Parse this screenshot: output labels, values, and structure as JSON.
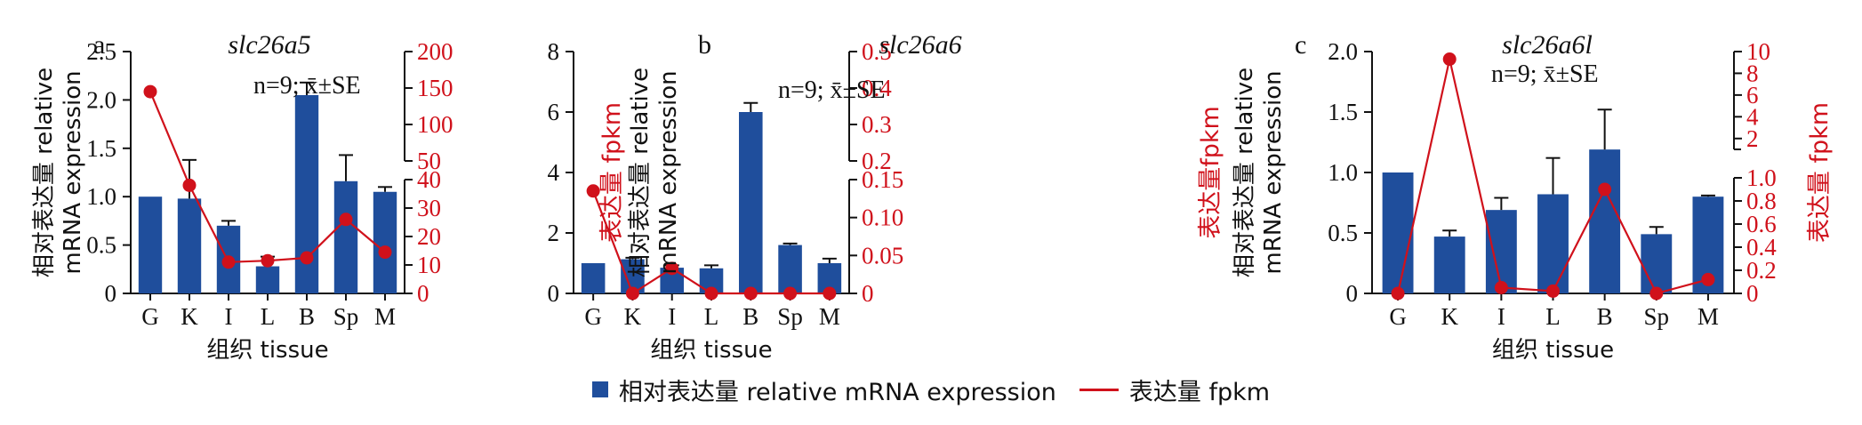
{
  "chart_data": [
    {
      "type": "bar",
      "panel_label": "a",
      "title": "slc26a5",
      "note": "n=9; x̄±SE",
      "categories": [
        "G",
        "K",
        "I",
        "L",
        "B",
        "Sp",
        "M"
      ],
      "xlabel": "组织 tissue",
      "ylabel": "相对表达量 relative mRNA expression",
      "ylim": [
        0,
        2.5
      ],
      "yticks": [
        "0",
        "0.5",
        "1.0",
        "1.5",
        "2.0",
        "2.5"
      ],
      "series": [
        {
          "name": "相对表达量 relative mRNA expression",
          "values": [
            1.0,
            0.98,
            0.7,
            0.28,
            2.05,
            1.16,
            1.05
          ],
          "errors": [
            0,
            0.4,
            0.05,
            0.1,
            0.13,
            0.27,
            0.05
          ]
        },
        {
          "name": "表达量 fpkm",
          "axis": "right",
          "values": [
            145,
            38,
            11,
            11.5,
            12.5,
            26,
            14.5
          ]
        }
      ],
      "y2label": "表达量 fpkm",
      "y2_broken": true,
      "y2_lower": {
        "range": [
          0,
          40
        ],
        "ticks": [
          "0",
          "10",
          "20",
          "30",
          "40"
        ]
      },
      "y2_upper": {
        "range": [
          50,
          200
        ],
        "ticks": [
          "50",
          "100",
          "150",
          "200"
        ]
      }
    },
    {
      "type": "bar",
      "panel_label": "b",
      "title": "slc26a6",
      "note": "n=9; x̄±SE",
      "categories": [
        "G",
        "K",
        "I",
        "L",
        "B",
        "Sp",
        "M"
      ],
      "xlabel": "组织 tissue",
      "ylabel": "相对表达量 relative mRNA expression",
      "ylim": [
        0,
        8
      ],
      "yticks": [
        "0",
        "2",
        "4",
        "6",
        "8"
      ],
      "series": [
        {
          "name": "相对表达量 relative mRNA expression",
          "values": [
            1.0,
            1.13,
            0.85,
            0.83,
            6.0,
            1.6,
            1.0
          ],
          "errors": [
            0,
            0.05,
            0.08,
            0.1,
            0.3,
            0.05,
            0.15
          ]
        },
        {
          "name": "表达量 fpkm",
          "axis": "right",
          "values": [
            0.135,
            0.0,
            0.033,
            0.0,
            0.0,
            0.0,
            0.0
          ]
        }
      ],
      "y2label": "表达量fpkm",
      "y2_broken": true,
      "y2_lower": {
        "range": [
          0,
          0.15
        ],
        "ticks": [
          "0",
          "0.05",
          "0.10",
          "0.15"
        ]
      },
      "y2_upper": {
        "range": [
          0.2,
          0.5
        ],
        "ticks": [
          "0.2",
          "0.3",
          "0.4",
          "0.5"
        ]
      }
    },
    {
      "type": "bar",
      "panel_label": "c",
      "title": "slc26a6l",
      "note": "n=9; x̄±SE",
      "categories": [
        "G",
        "K",
        "I",
        "L",
        "B",
        "Sp",
        "M"
      ],
      "xlabel": "组织 tissue",
      "ylabel": "相对表达量 relative mRNA expression",
      "ylim": [
        0,
        2.0
      ],
      "yticks": [
        "0",
        "0.5",
        "1.0",
        "1.5",
        "2.0"
      ],
      "series": [
        {
          "name": "相对表达量 relative mRNA expression",
          "values": [
            1.0,
            0.47,
            0.69,
            0.82,
            1.19,
            0.49,
            0.8
          ],
          "errors": [
            0,
            0.05,
            0.1,
            0.3,
            0.33,
            0.06,
            0.01
          ]
        },
        {
          "name": "表达量 fpkm",
          "axis": "right",
          "values": [
            0.0,
            9.3,
            0.05,
            0.02,
            0.9,
            0.0,
            0.12
          ]
        }
      ],
      "y2label": "表达量 fpkm",
      "y2_broken": true,
      "y2_lower": {
        "range": [
          0,
          1.0
        ],
        "ticks": [
          "0",
          "0.2",
          "0.4",
          "0.6",
          "0.8",
          "1.0"
        ]
      },
      "y2_upper": {
        "range": [
          1,
          10
        ],
        "ticks": [
          "2",
          "4",
          "6",
          "8",
          "10"
        ]
      }
    }
  ],
  "legend": {
    "position": "bottom-center",
    "bar_label": "相对表达量 relative mRNA expression",
    "line_label": "表达量 fpkm"
  },
  "colors": {
    "bar": "#1f4e9c",
    "line": "#d0111b",
    "axis": "#111111"
  }
}
